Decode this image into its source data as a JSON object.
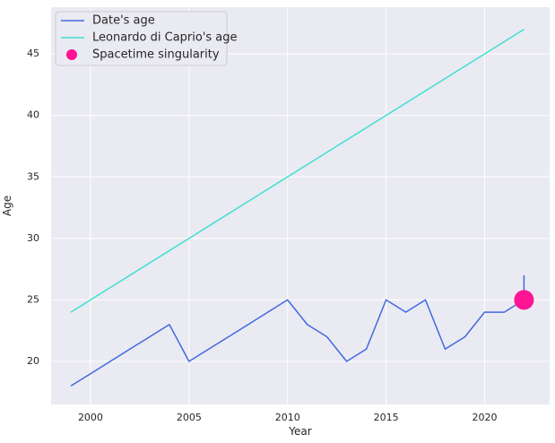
{
  "chart_data": {
    "type": "line",
    "title": "",
    "xlabel": "Year",
    "ylabel": "Age",
    "xlim": [
      1998,
      2023.3
    ],
    "ylim": [
      16.5,
      48.8
    ],
    "xticks": [
      2000,
      2005,
      2010,
      2015,
      2020
    ],
    "yticks": [
      20,
      25,
      30,
      35,
      40,
      45
    ],
    "grid": true,
    "legend_position": "top-left",
    "series": [
      {
        "name": "Date's age",
        "color": "#4169e1",
        "x": [
          1999,
          2000,
          2001,
          2002,
          2003,
          2004,
          2005,
          2006,
          2007,
          2008,
          2009,
          2010,
          2011,
          2012,
          2013,
          2014,
          2015,
          2016,
          2017,
          2018,
          2019,
          2020,
          2021,
          2022,
          2022
        ],
        "y": [
          18,
          19,
          20,
          21,
          22,
          23,
          20,
          21,
          22,
          23,
          24,
          25,
          23,
          22,
          20,
          21,
          25,
          24,
          25,
          21,
          22,
          24,
          24,
          25,
          27
        ]
      },
      {
        "name": "Leonardo di Caprio's age",
        "color": "#40e0d0",
        "x": [
          1999,
          2022
        ],
        "y": [
          24,
          47
        ]
      }
    ],
    "points": [
      {
        "name": "Spacetime singularity",
        "color": "#ff1493",
        "x": 2022,
        "y": 25
      }
    ]
  }
}
